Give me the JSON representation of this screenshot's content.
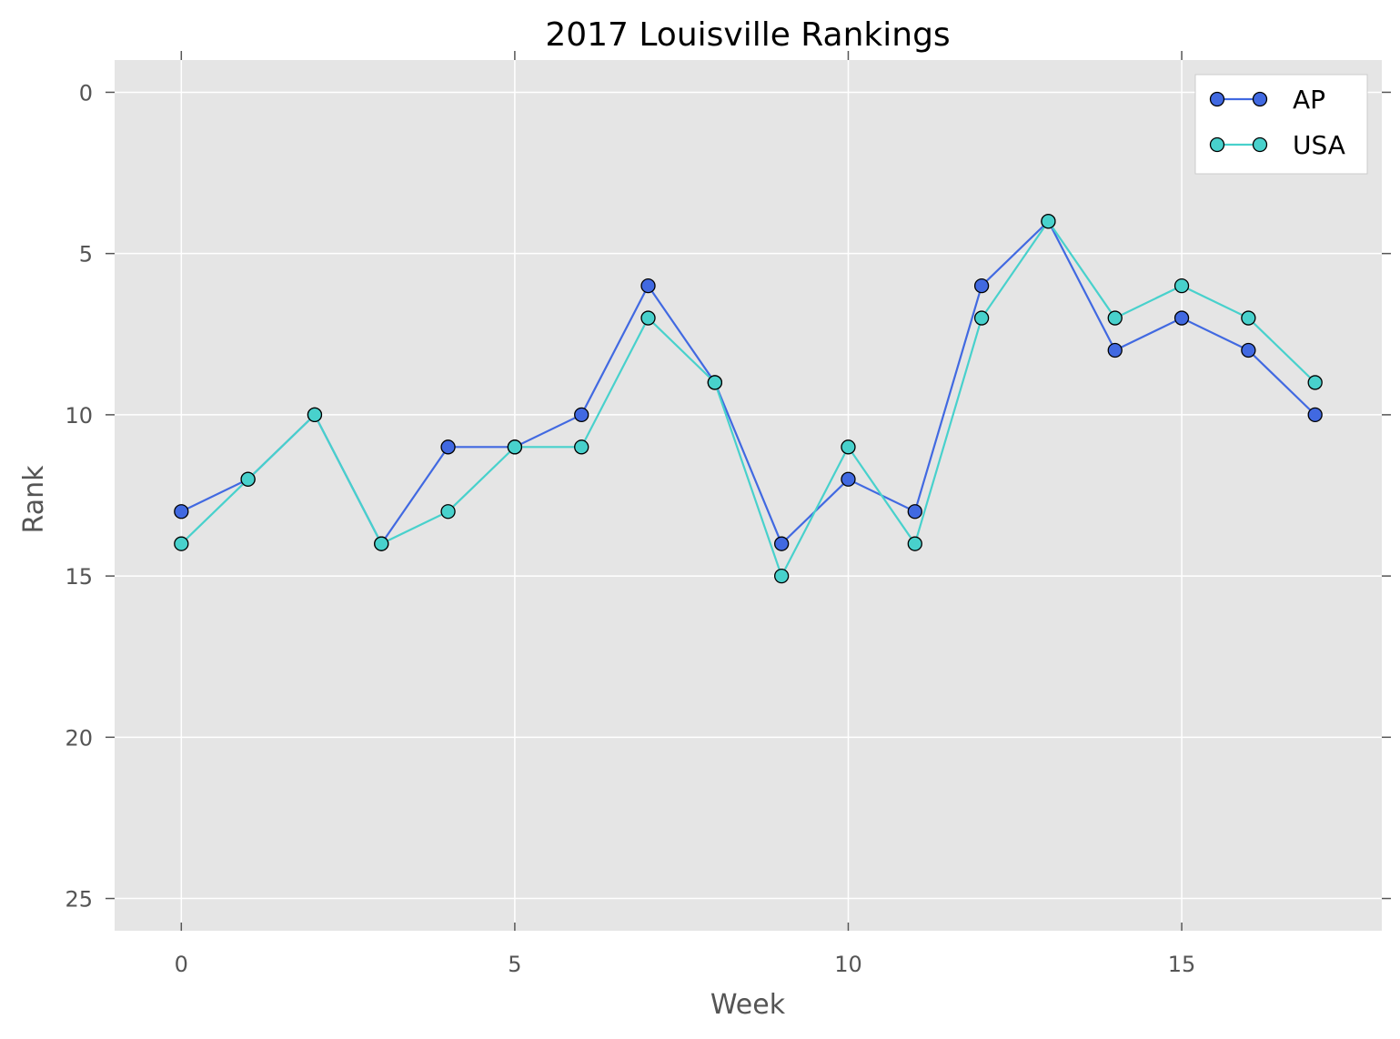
{
  "chart_data": {
    "type": "line",
    "title": "2017 Louisville Rankings",
    "xlabel": "Week",
    "ylabel": "Rank",
    "xlim": [
      -1,
      18
    ],
    "ylim": [
      26,
      -1
    ],
    "y_inverted": true,
    "xticks": [
      0,
      5,
      10,
      15
    ],
    "yticks": [
      0,
      5,
      10,
      15,
      20,
      25
    ],
    "grid": true,
    "legend_position": "top-right",
    "x": [
      0,
      1,
      2,
      3,
      4,
      5,
      6,
      7,
      8,
      9,
      10,
      11,
      12,
      13,
      14,
      15,
      16,
      17
    ],
    "series": [
      {
        "name": "AP",
        "color": "#4169e1",
        "values": [
          13,
          12,
          10,
          14,
          11,
          11,
          10,
          6,
          9,
          14,
          12,
          13,
          6,
          4,
          8,
          7,
          8,
          10
        ]
      },
      {
        "name": "USA",
        "color": "#48d1cc",
        "values": [
          14,
          12,
          10,
          14,
          13,
          11,
          11,
          7,
          9,
          15,
          11,
          14,
          7,
          4,
          7,
          6,
          7,
          9
        ]
      }
    ],
    "background_color": "#e5e5e5"
  }
}
